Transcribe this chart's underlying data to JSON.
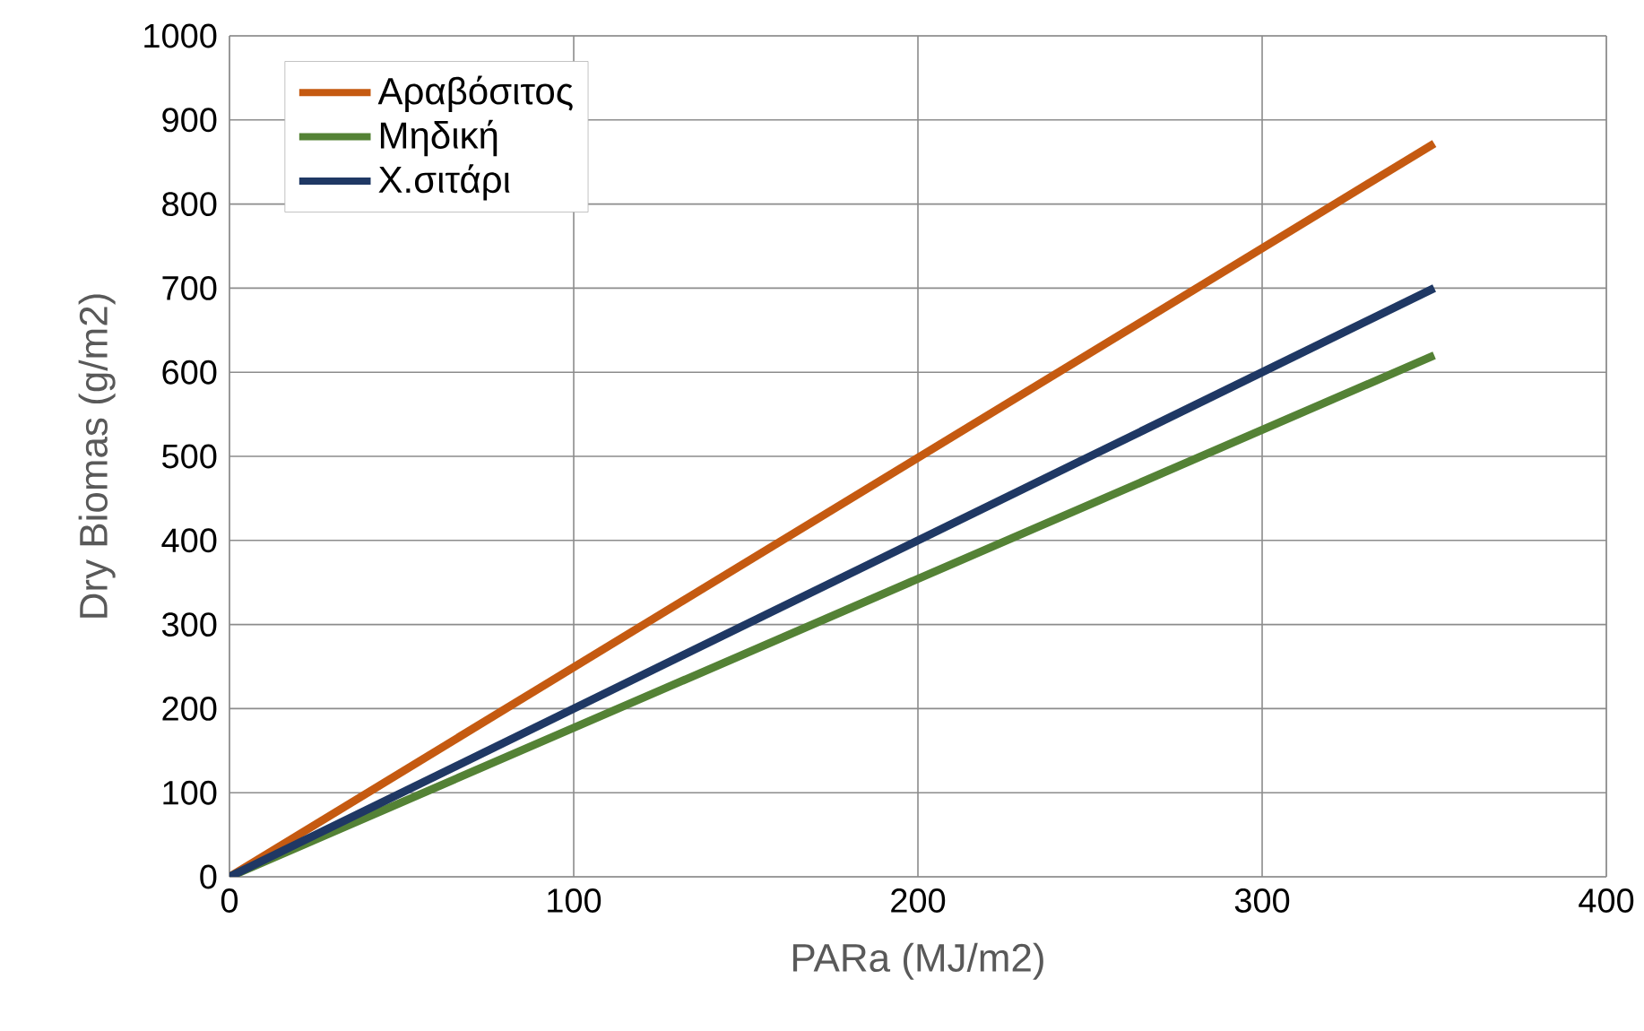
{
  "chart_data": {
    "type": "line",
    "xlabel": "PARa (MJ/m2)",
    "ylabel": "Dry Biomas (g/m2)",
    "x": [
      0,
      350
    ],
    "series": [
      {
        "name": "Αραβόσιτος",
        "color": "#c55a11",
        "values": [
          0,
          872
        ]
      },
      {
        "name": "Μηδική",
        "color": "#548235",
        "values": [
          0,
          620
        ]
      },
      {
        "name": "Χ.σιτάρι",
        "color": "#1f3864",
        "values": [
          0,
          700
        ]
      }
    ],
    "xlim": [
      0,
      400
    ],
    "xticks": [
      0,
      100,
      200,
      300,
      400
    ],
    "ylim": [
      0,
      1000
    ],
    "yticks": [
      0,
      100,
      200,
      300,
      400,
      500,
      600,
      700,
      800,
      900,
      1000
    ],
    "grid": true,
    "legend": "top left",
    "marker": "none",
    "line_style": "solid"
  }
}
